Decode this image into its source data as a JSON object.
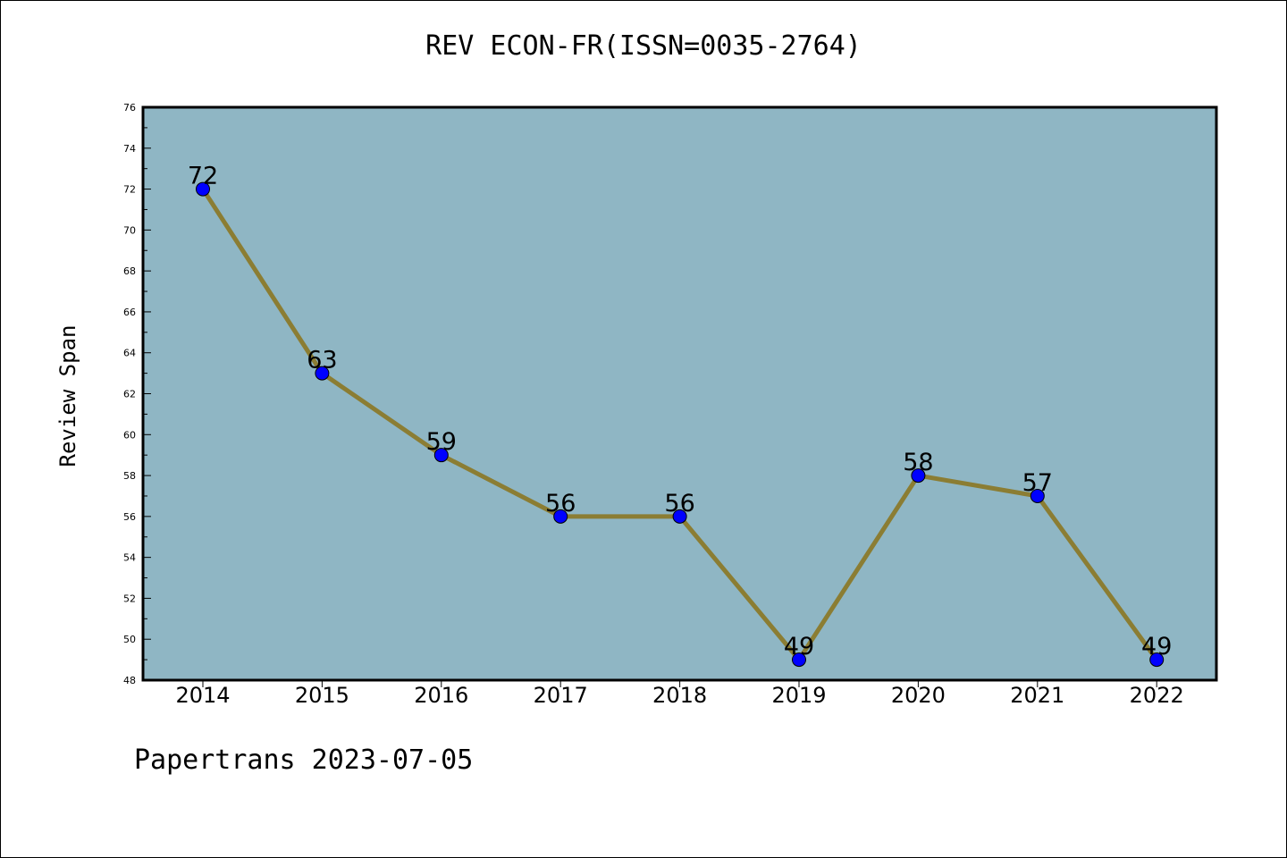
{
  "title": "REV ECON-FR(ISSN=0035-2764)",
  "footer": "Papertrans 2023-07-05",
  "colors": {
    "plot_background": "#8fb6c4",
    "line": "#8b7d33",
    "marker": "#0000ff"
  },
  "chart_data": {
    "type": "line",
    "title": "REV ECON-FR(ISSN=0035-2764)",
    "xlabel": "",
    "ylabel": "Review Span",
    "categories": [
      "2014",
      "2015",
      "2016",
      "2017",
      "2018",
      "2019",
      "2020",
      "2021",
      "2022"
    ],
    "series": [
      {
        "values": [
          72,
          63,
          59,
          56,
          56,
          49,
          58,
          57,
          49
        ]
      }
    ],
    "ylim": [
      48,
      76
    ],
    "yticks": [
      48,
      50,
      52,
      54,
      56,
      58,
      60,
      62,
      64,
      66,
      68,
      70,
      72,
      74,
      76
    ],
    "data_labels": [
      "72",
      "63",
      "59",
      "56",
      "56",
      "49",
      "58",
      "57",
      "49"
    ],
    "grid": false,
    "legend": "none"
  }
}
